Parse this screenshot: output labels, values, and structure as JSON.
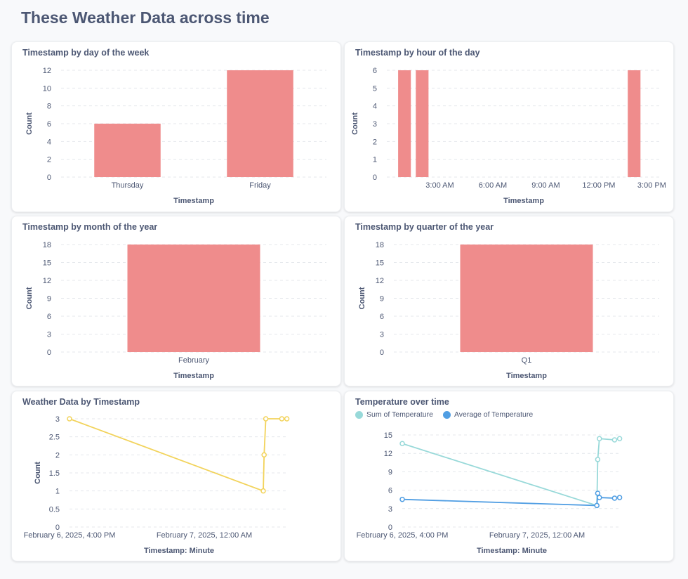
{
  "page": {
    "title": "These Weather Data across time"
  },
  "colors": {
    "bar": "#ef8c8c",
    "line_single": "#f2d35b",
    "sum": "#98d9d9",
    "avg": "#509ee3",
    "grid": "#e4e7eb",
    "text": "#4c5773"
  },
  "chart_data": [
    {
      "id": "dow",
      "type": "bar",
      "title": "Timestamp by day of the week",
      "xlabel": "Timestamp",
      "ylabel": "Count",
      "categories": [
        "Thursday",
        "Friday"
      ],
      "values": [
        6,
        12
      ],
      "yticks": [
        0,
        2,
        4,
        6,
        8,
        10,
        12
      ],
      "ylim": [
        0,
        12
      ]
    },
    {
      "id": "hod",
      "type": "bar",
      "title": "Timestamp by hour of the day",
      "xlabel": "Timestamp",
      "ylabel": "Count",
      "x_range": [
        0,
        15.5
      ],
      "xticks": [
        {
          "value": 3,
          "label": "3:00 AM"
        },
        {
          "value": 6,
          "label": "6:00 AM"
        },
        {
          "value": 9,
          "label": "9:00 AM"
        },
        {
          "value": 12,
          "label": "12:00 PM"
        },
        {
          "value": 15,
          "label": "3:00 PM"
        }
      ],
      "bars": [
        {
          "hour": 1,
          "value": 6
        },
        {
          "hour": 2,
          "value": 6
        },
        {
          "hour": 14,
          "value": 6
        }
      ],
      "yticks": [
        0,
        1,
        2,
        3,
        4,
        5,
        6
      ],
      "ylim": [
        0,
        6
      ]
    },
    {
      "id": "moy",
      "type": "bar",
      "title": "Timestamp by month of the year",
      "xlabel": "Timestamp",
      "ylabel": "Count",
      "categories": [
        "February"
      ],
      "values": [
        18
      ],
      "yticks": [
        0,
        3,
        6,
        9,
        12,
        15,
        18
      ],
      "ylim": [
        0,
        18
      ]
    },
    {
      "id": "qoy",
      "type": "bar",
      "title": "Timestamp by quarter of the year",
      "xlabel": "Timestamp",
      "ylabel": "Count",
      "categories": [
        "Q1"
      ],
      "values": [
        18
      ],
      "yticks": [
        0,
        3,
        6,
        9,
        12,
        15,
        18
      ],
      "ylim": [
        0,
        18
      ]
    },
    {
      "id": "wdts",
      "type": "line",
      "title": "Weather Data by Timestamp",
      "xlabel": "Timestamp: Minute",
      "ylabel": "Count",
      "x_range_hours": [
        0,
        13
      ],
      "xticks": [
        {
          "value": 0,
          "label": "February 6, 2025, 4:00 PM"
        },
        {
          "value": 8,
          "label": "February 7, 2025, 12:00 AM"
        }
      ],
      "yticks": [
        0,
        0.5,
        1,
        1.5,
        2,
        2.5,
        3
      ],
      "ylim": [
        0,
        3
      ],
      "series": [
        {
          "color": "#f2d35b",
          "points": [
            [
              0,
              3
            ],
            [
              11.5,
              1
            ],
            [
              11.55,
              2
            ],
            [
              11.65,
              3
            ],
            [
              12.6,
              3
            ],
            [
              12.9,
              3
            ]
          ]
        }
      ]
    },
    {
      "id": "temp",
      "type": "line",
      "title": "Temperature over time",
      "xlabel": "Timestamp: Minute",
      "ylabel": "",
      "x_range_hours": [
        0,
        13
      ],
      "xticks": [
        {
          "value": 0,
          "label": "February 6, 2025, 4:00 PM"
        },
        {
          "value": 8,
          "label": "February 7, 2025, 12:00 AM"
        }
      ],
      "yticks": [
        0,
        3,
        6,
        9,
        12,
        15
      ],
      "ylim": [
        0,
        15
      ],
      "legend": [
        {
          "name": "Sum of Temperature",
          "color": "#98d9d9"
        },
        {
          "name": "Average of Temperature",
          "color": "#509ee3"
        }
      ],
      "series": [
        {
          "name": "Sum of Temperature",
          "color": "#98d9d9",
          "points": [
            [
              0,
              13.6
            ],
            [
              11.55,
              3.5
            ],
            [
              11.6,
              11
            ],
            [
              11.7,
              14.4
            ],
            [
              12.6,
              14.2
            ],
            [
              12.9,
              14.4
            ]
          ]
        },
        {
          "name": "Average of Temperature",
          "color": "#509ee3",
          "points": [
            [
              0,
              4.5
            ],
            [
              11.55,
              3.5
            ],
            [
              11.6,
              5.5
            ],
            [
              11.7,
              4.8
            ],
            [
              12.6,
              4.7
            ],
            [
              12.9,
              4.8
            ]
          ]
        }
      ]
    }
  ]
}
